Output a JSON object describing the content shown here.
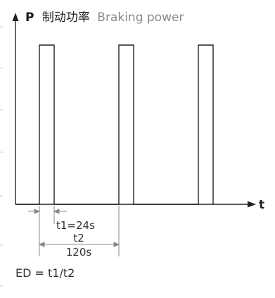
{
  "y_axis": {
    "symbol": "P",
    "label_cn": "制动功率",
    "label_en": "Braking power"
  },
  "x_axis": {
    "symbol": "t"
  },
  "t1_label": "t1=24s",
  "t2_label": "t2",
  "t2_value": "120s",
  "formula": "ED = t1/t2",
  "colors": {
    "line": "#222222",
    "dim": "#888888"
  },
  "pulses": 3
}
